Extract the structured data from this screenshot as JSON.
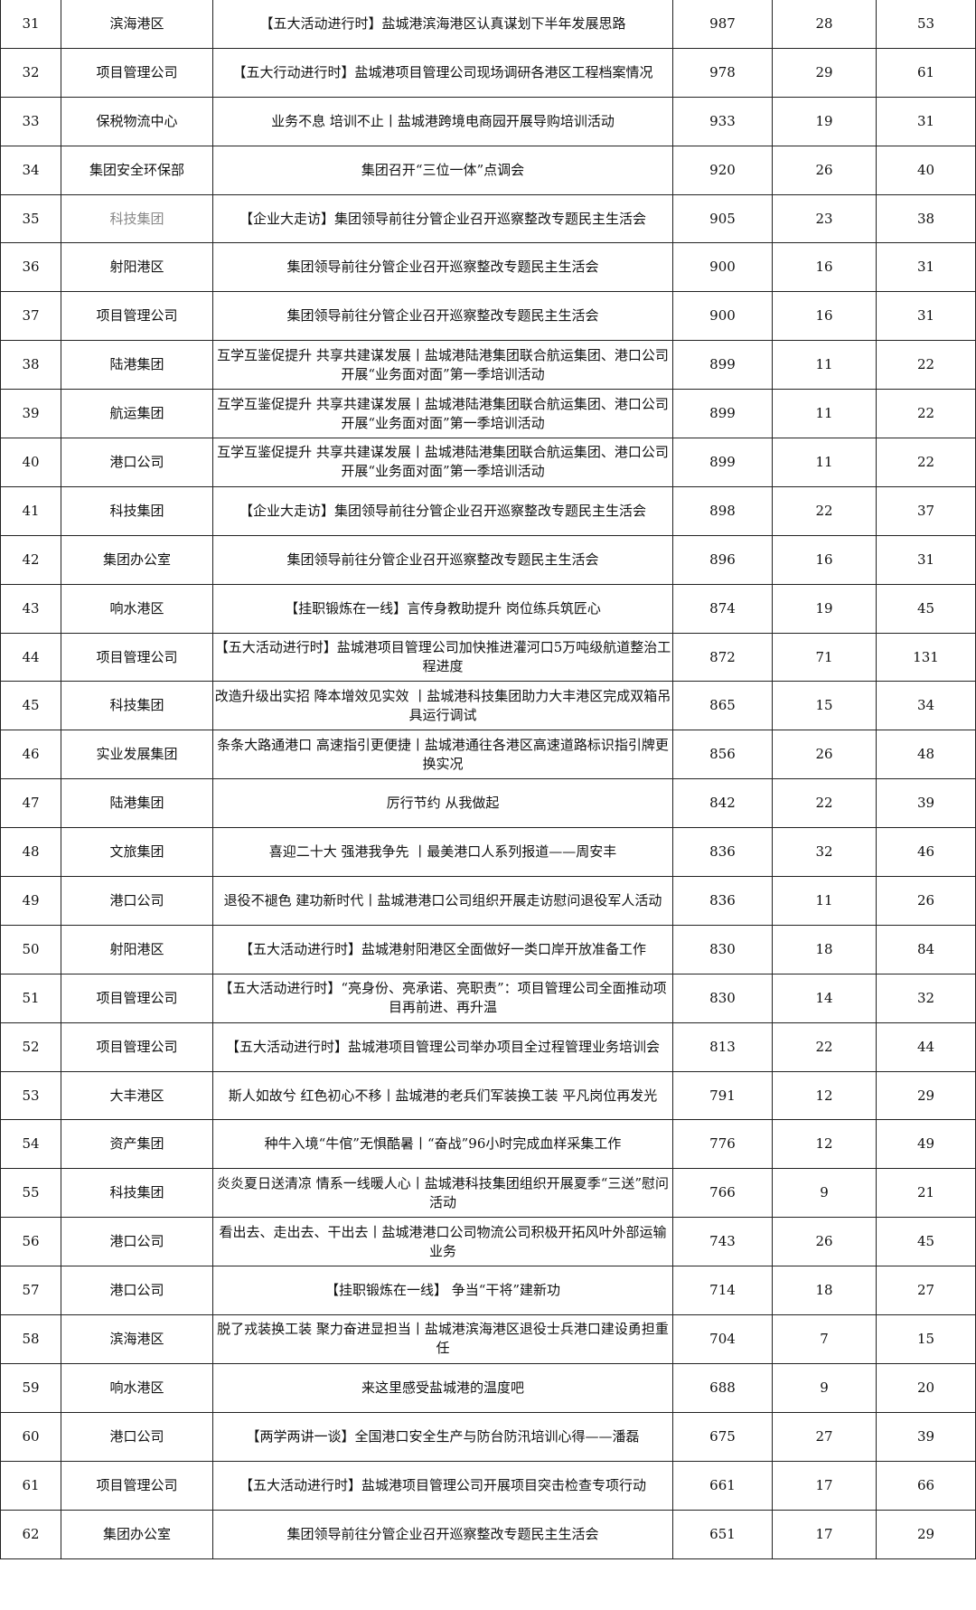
{
  "rows": [
    [
      "31",
      "滨海港区",
      "【五大活动进行时】盐城港滨海港区认真谋划下半年发展思路",
      "987",
      "28",
      "53"
    ],
    [
      "32",
      "项目管理公司",
      "【五大行动进行时】盐城港项目管理公司现场调研各港区工程档案情况",
      "978",
      "29",
      "61"
    ],
    [
      "33",
      "保税物流中心",
      "业务不息 培训不止丨盐城港跨境电商园开展导购培训活动",
      "933",
      "19",
      "31"
    ],
    [
      "34",
      "集团安全环保部",
      "集团召开“三位一体”点调会",
      "920",
      "26",
      "40"
    ],
    [
      "35",
      "科技集团",
      "【企业大走访】集团领导前往分管企业召开巡察整改专题民主生活会",
      "905",
      "23",
      "38"
    ],
    [
      "36",
      "射阳港区",
      "集团领导前往分管企业召开巡察整改专题民主生活会",
      "900",
      "16",
      "31"
    ],
    [
      "37",
      "项目管理公司",
      "集团领导前往分管企业召开巡察整改专题民主生活会",
      "900",
      "16",
      "31"
    ],
    [
      "38",
      "陆港集团",
      "互学互鉴促提升 共享共建谋发展丨盐城港陆港集团联合航运集团、港口公司开展“业务面对面”第一季培训活动",
      "899",
      "11",
      "22"
    ],
    [
      "39",
      "航运集团",
      "互学互鉴促提升 共享共建谋发展丨盐城港陆港集团联合航运集团、港口公司开展“业务面对面”第一季培训活动",
      "899",
      "11",
      "22"
    ],
    [
      "40",
      "港口公司",
      "互学互鉴促提升 共享共建谋发展丨盐城港陆港集团联合航运集团、港口公司开展“业务面对面”第一季培训活动",
      "899",
      "11",
      "22"
    ],
    [
      "41",
      "科技集团",
      "【企业大走访】集团领导前往分管企业召开巡察整改专题民主生活会",
      "898",
      "22",
      "37"
    ],
    [
      "42",
      "集团办公室",
      "集团领导前往分管企业召开巡察整改专题民主生活会",
      "896",
      "16",
      "31"
    ],
    [
      "43",
      "响水港区",
      "【挂职锻炼在一线】言传身教助提升 岗位练兵筑匠心",
      "874",
      "19",
      "45"
    ],
    [
      "44",
      "项目管理公司",
      "【五大活动进行时】盐城港项目管理公司加快推进灌河口5万吨级航道整治工程进度",
      "872",
      "71",
      "131"
    ],
    [
      "45",
      "科技集团",
      "改造升级出实招 降本增效见实效 丨盐城港科技集团助力大丰港区完成双箱吊具运行调试",
      "865",
      "15",
      "34"
    ],
    [
      "46",
      "实业发展集团",
      "条条大路通港口 高速指引更便捷丨盐城港通往各港区高速道路标识指引牌更换实况",
      "856",
      "26",
      "48"
    ],
    [
      "47",
      "陆港集团",
      "厉行节约 从我做起",
      "842",
      "22",
      "39"
    ],
    [
      "48",
      "文旅集团",
      "喜迎二十大 强港我争先 丨最美港口人系列报道——周安丰",
      "836",
      "32",
      "46"
    ],
    [
      "49",
      "港口公司",
      "退役不褪色 建功新时代丨盐城港港口公司组织开展走访慰问退役军人活动",
      "836",
      "11",
      "26"
    ],
    [
      "50",
      "射阳港区",
      "【五大活动进行时】盐城港射阳港区全面做好一类口岸开放准备工作",
      "830",
      "18",
      "84"
    ],
    [
      "51",
      "项目管理公司",
      "【五大活动进行时】“亮身份、亮承诺、亮职责”：项目管理公司全面推动项目再前进、再升温",
      "830",
      "14",
      "32"
    ],
    [
      "52",
      "项目管理公司",
      "【五大活动进行时】盐城港项目管理公司举办项目全过程管理业务培训会",
      "813",
      "22",
      "44"
    ],
    [
      "53",
      "大丰港区",
      "斯人如故兮 红色初心不移丨盐城港的老兵们军装换工装 平凡岗位再发光",
      "791",
      "12",
      "29"
    ],
    [
      "54",
      "资产集团",
      "种牛入境“牛倌”无惧酷暑丨“奋战”96小时完成血样采集工作",
      "776",
      "12",
      "49"
    ],
    [
      "55",
      "科技集团",
      "炎炎夏日送清凉 情系一线暖人心丨盐城港科技集团组织开展夏季“三送”慰问活动",
      "766",
      "9",
      "21"
    ],
    [
      "56",
      "港口公司",
      "看出去、走出去、干出去丨盐城港港口公司物流公司积极开拓风叶外部运输业务",
      "743",
      "26",
      "45"
    ],
    [
      "57",
      "港口公司",
      "【挂职锻炼在一线】 争当“干将”建新功",
      "714",
      "18",
      "27"
    ],
    [
      "58",
      "滨海港区",
      "脱了戎装换工装 聚力奋进显担当丨盐城港滨海港区退役士兵港口建设勇担重任",
      "704",
      "7",
      "15"
    ],
    [
      "59",
      "响水港区",
      "来这里感受盐城港的温度吧",
      "688",
      "9",
      "20"
    ],
    [
      "60",
      "港口公司",
      "【两学两讲一谈】全国港口安全生产与防台防汛培训心得——潘磊",
      "675",
      "27",
      "39"
    ],
    [
      "61",
      "项目管理公司",
      "【五大活动进行时】盐城港项目管理公司开展项目突击检查专项行动",
      "661",
      "17",
      "66"
    ],
    [
      "62",
      "集团办公室",
      "集团领导前往分管企业召开巡察整改专题民主生活会",
      "651",
      "17",
      "29"
    ]
  ],
  "muted_rows": [
    "35"
  ]
}
